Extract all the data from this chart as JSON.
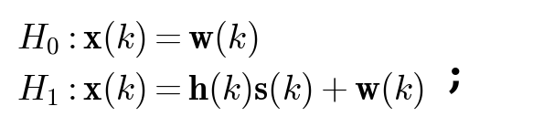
{
  "line1": "$H_0:\\mathbf{x}(k)=\\mathbf{w}(k)$",
  "line2": "$H_1:\\mathbf{x}(k)=\\mathbf{h}(k)\\mathbf{s}(k)+\\mathbf{w}(k)$",
  "semicolon": ";",
  "bg_color": "#ffffff",
  "text_color": "#000000",
  "fontsize": 28,
  "fig_width": 5.83,
  "fig_height": 1.51,
  "dpi": 100
}
